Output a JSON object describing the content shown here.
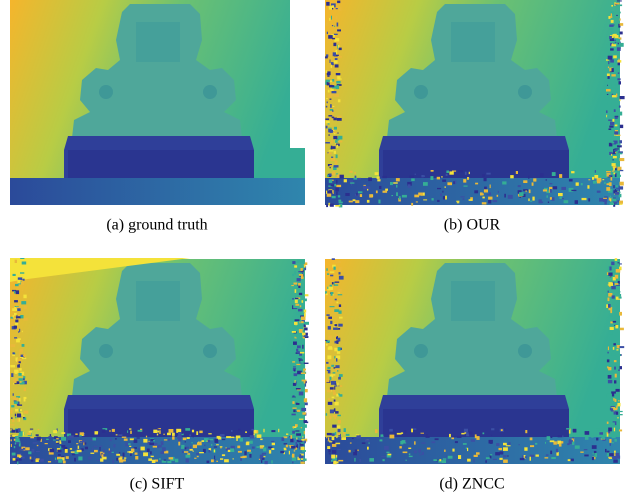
{
  "figure": {
    "panels": [
      {
        "caption": "(a) ground truth"
      },
      {
        "caption": "(b) OUR"
      },
      {
        "caption": "(c) SIFT"
      },
      {
        "caption": "(d) ZNCC"
      }
    ]
  }
}
